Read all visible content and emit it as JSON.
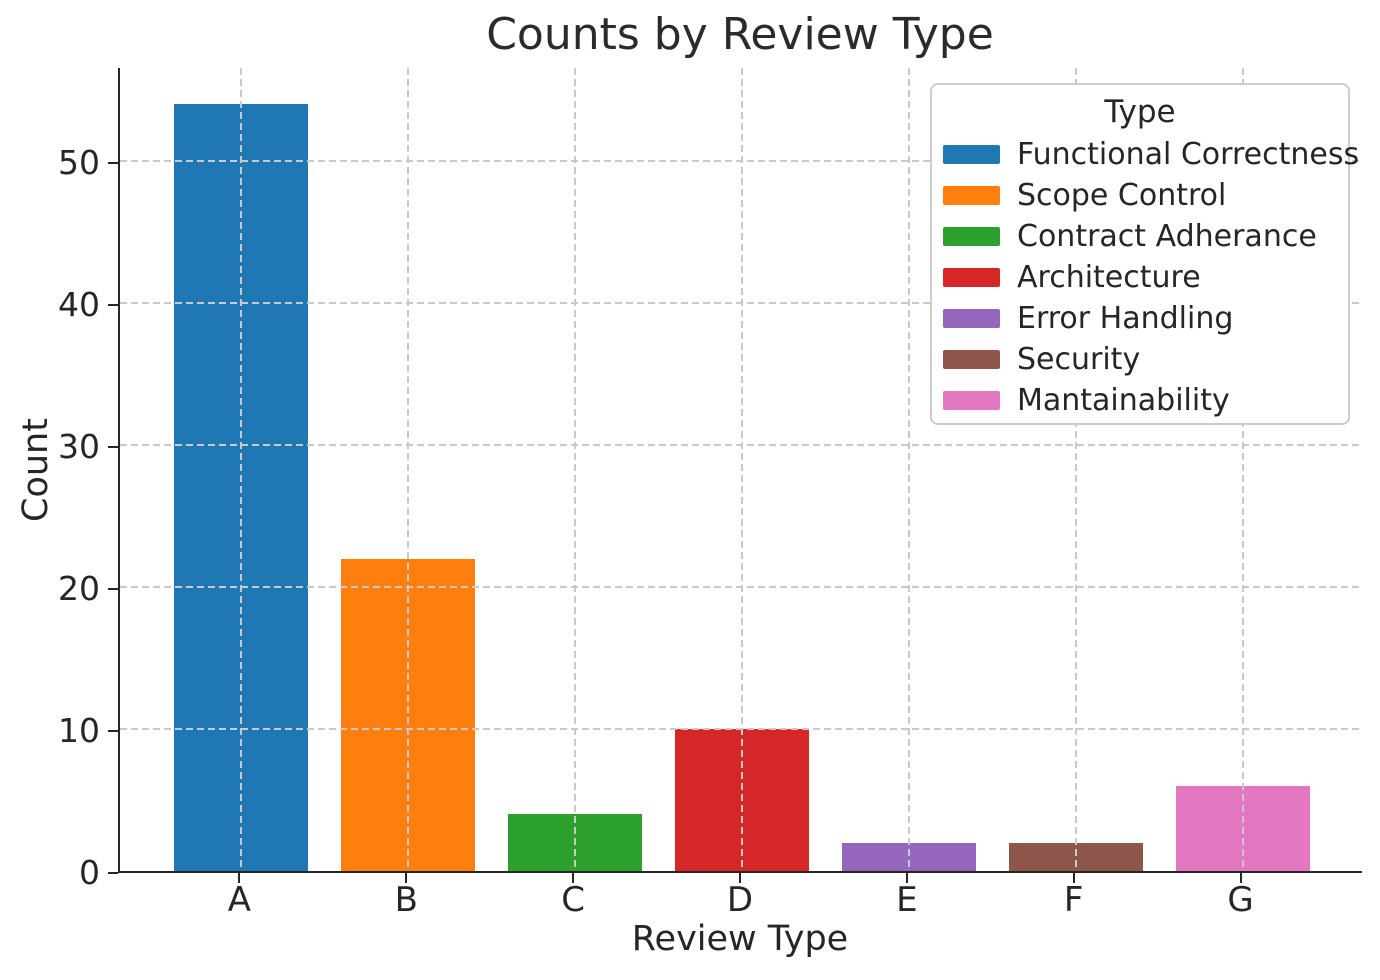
{
  "chart_data": {
    "type": "bar",
    "title": "Counts by Review Type",
    "xlabel": "Review Type",
    "ylabel": "Count",
    "categories": [
      "A",
      "B",
      "C",
      "D",
      "E",
      "F",
      "G"
    ],
    "values": [
      54,
      22,
      4,
      10,
      2,
      2,
      6
    ],
    "bar_colors": [
      "#1f77b4",
      "#ff7f0e",
      "#2ca02c",
      "#d62728",
      "#9467bd",
      "#8c564b",
      "#e377c2"
    ],
    "yticks": [
      0,
      10,
      20,
      30,
      40,
      50
    ],
    "ylim": [
      0,
      56.7
    ],
    "grid": "dashed",
    "grid_color": "#c9c9c9",
    "spine_color": "#262626",
    "legend": {
      "title": "Type",
      "position": "upper right",
      "entries": [
        {
          "label": "Functional Correctness",
          "color": "#1f77b4"
        },
        {
          "label": "Scope Control",
          "color": "#ff7f0e"
        },
        {
          "label": "Contract Adherance",
          "color": "#2ca02c"
        },
        {
          "label": "Architecture",
          "color": "#d62728"
        },
        {
          "label": "Error Handling",
          "color": "#9467bd"
        },
        {
          "label": "Security",
          "color": "#8c564b"
        },
        {
          "label": "Mantainability",
          "color": "#e377c2"
        }
      ]
    }
  }
}
